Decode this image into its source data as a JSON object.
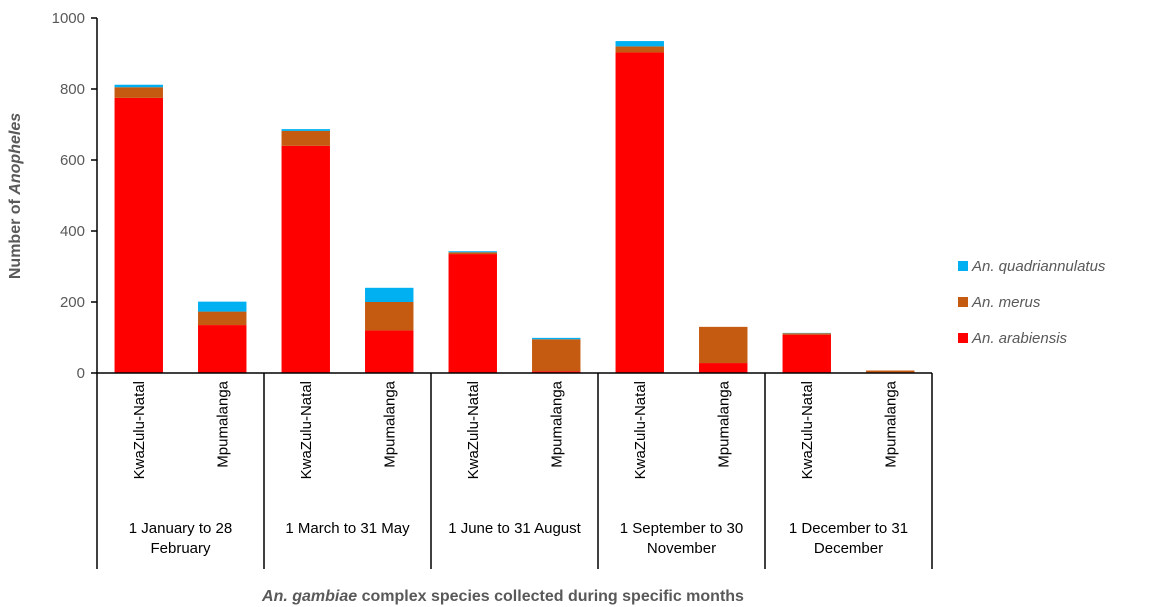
{
  "chart_data": {
    "type": "bar",
    "stacked": true,
    "ylabel_parts": [
      {
        "text": "Number of ",
        "italic": false
      },
      {
        "text": "Anopheles",
        "italic": true
      }
    ],
    "xlabel_parts": [
      {
        "text": "An. gambiae",
        "italic": true
      },
      {
        "text": " complex species collected during specific months",
        "italic": false
      }
    ],
    "ylim": [
      0,
      1000
    ],
    "yticks": [
      "0",
      "200",
      "400",
      "600",
      "800",
      "1000"
    ],
    "grid": false,
    "legend_position": "right",
    "groups": [
      {
        "label_lines": [
          "1 January to 28",
          "February"
        ],
        "categories": [
          "KwaZulu-Natal",
          "Mpumalanga"
        ]
      },
      {
        "label_lines": [
          "1 March to 31 May"
        ],
        "categories": [
          "KwaZulu-Natal",
          "Mpumalanga"
        ]
      },
      {
        "label_lines": [
          "1 June to 31 August"
        ],
        "categories": [
          "KwaZulu-Natal",
          "Mpumalanga"
        ]
      },
      {
        "label_lines": [
          "1 September to 30",
          "November"
        ],
        "categories": [
          "KwaZulu-Natal",
          "Mpumalanga"
        ]
      },
      {
        "label_lines": [
          "1 December to 31",
          "December"
        ],
        "categories": [
          "KwaZulu-Natal",
          "Mpumalanga"
        ]
      }
    ],
    "series": [
      {
        "name": "An. arabiensis",
        "color": "#ff0000",
        "values": [
          775,
          135,
          640,
          120,
          335,
          5,
          903,
          28,
          108,
          2
        ]
      },
      {
        "name": "An. merus",
        "color": "#c55a11",
        "values": [
          30,
          38,
          42,
          80,
          5,
          90,
          17,
          102,
          4,
          5
        ]
      },
      {
        "name": "An. quadriannulatus",
        "color": "#00b0f0",
        "values": [
          7,
          28,
          5,
          40,
          3,
          4,
          15,
          0,
          1,
          0
        ]
      }
    ]
  }
}
